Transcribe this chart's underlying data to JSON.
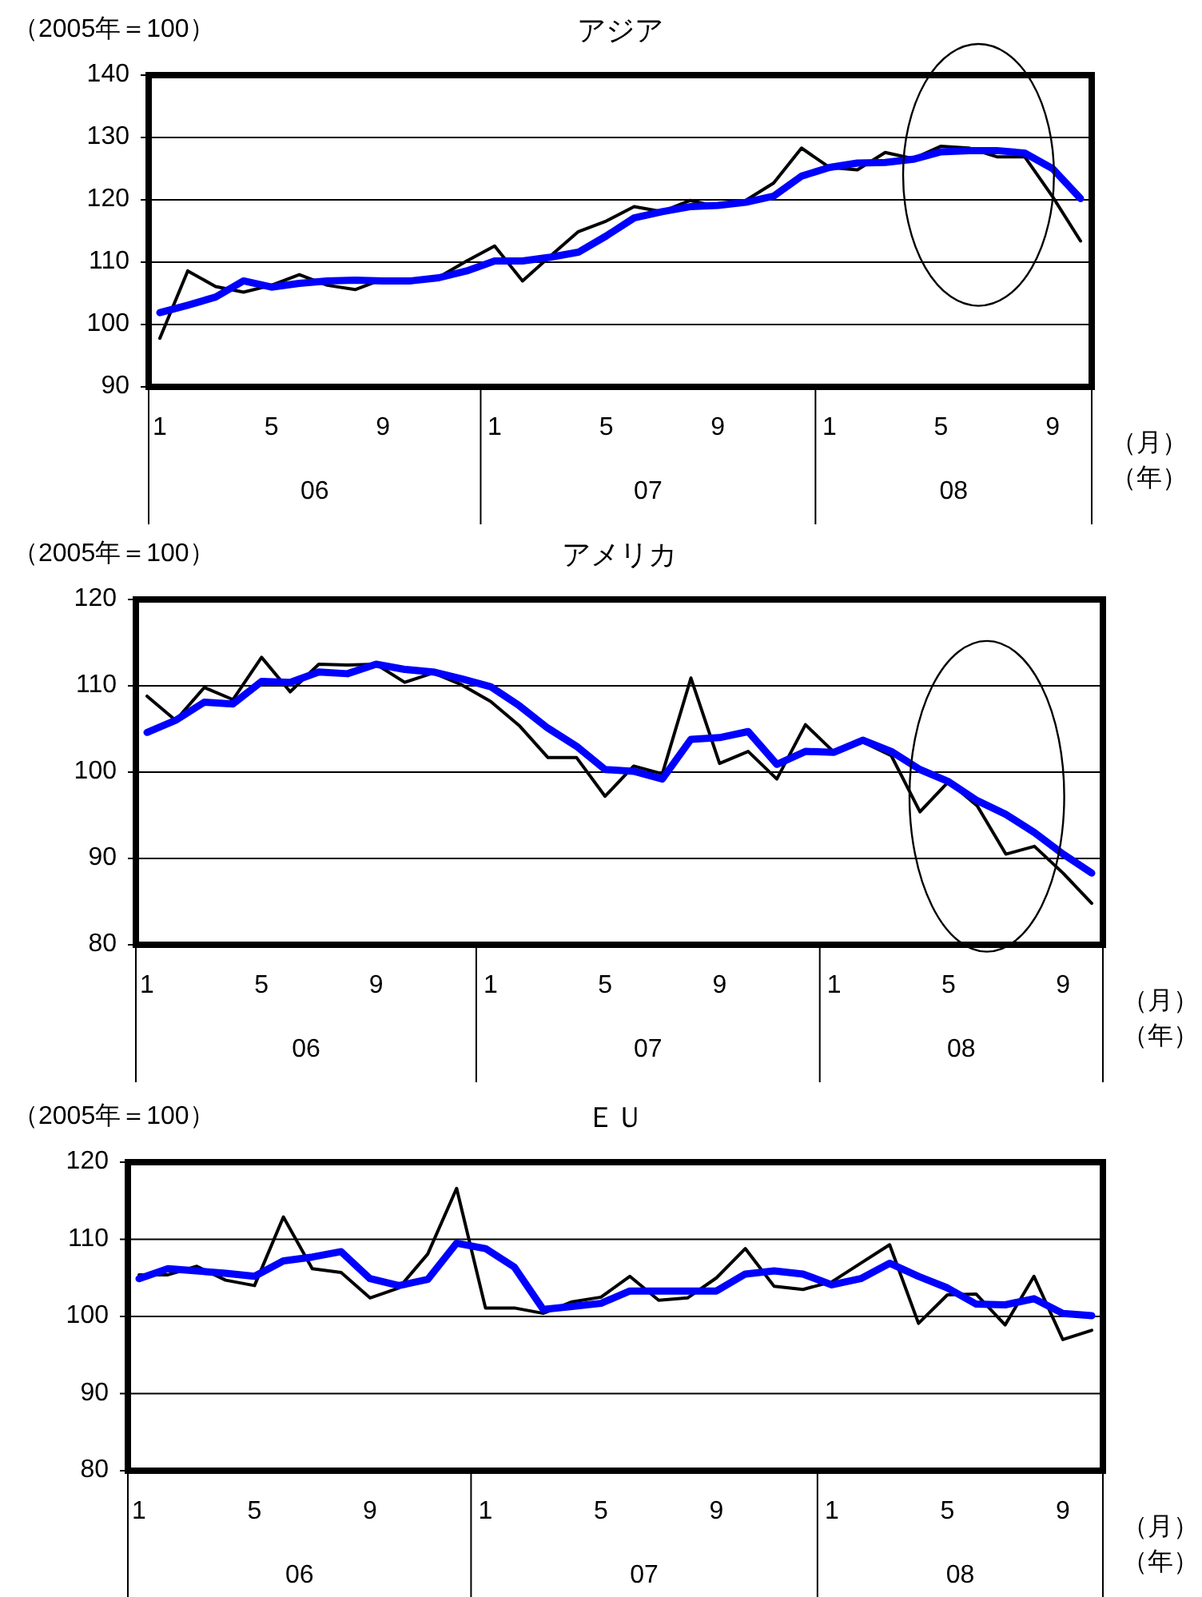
{
  "chart_data": [
    {
      "type": "line",
      "title": "アジア",
      "ylabel": "（2005年＝100）",
      "xlabel": "（月）",
      "annotations": [
        "（年）",
        "06",
        "07",
        "08"
      ],
      "categories": [
        "1",
        null,
        null,
        null,
        "5",
        null,
        null,
        null,
        "9",
        null,
        null,
        null,
        "1",
        null,
        null,
        null,
        "5",
        null,
        null,
        null,
        "9",
        null,
        null,
        null,
        "1",
        null,
        null,
        null,
        "5",
        null,
        null,
        null,
        "9",
        null
      ],
      "ylim": [
        90,
        140
      ],
      "yticks": [
        90,
        100,
        110,
        120,
        130,
        140
      ],
      "grid": "y",
      "series": [
        {
          "color": "#000000",
          "values": [
            97.8,
            108.6,
            106.1,
            105.2,
            106.3,
            108,
            106.3,
            105.6,
            107.3,
            106.8,
            107.6,
            110.2,
            112.6,
            107,
            111,
            114.9,
            116.6,
            118.9,
            118.1,
            119.9,
            118.9,
            119.9,
            122.7,
            128.3,
            125.2,
            124.8,
            127.6,
            126.6,
            128.6,
            128.3,
            126.9,
            126.9,
            120.5,
            113.4
          ]
        },
        {
          "color": "#0000ff",
          "values": [
            101.9,
            103.1,
            104.4,
            107,
            106,
            106.6,
            107,
            107.1,
            107,
            107,
            107.5,
            108.6,
            110.2,
            110.2,
            110.8,
            111.6,
            114.2,
            117.1,
            118.1,
            118.9,
            119.1,
            119.6,
            120.6,
            123.8,
            125.2,
            125.9,
            126,
            126.5,
            127.7,
            127.9,
            127.9,
            127.5,
            125,
            120.2
          ]
        }
      ]
    },
    {
      "type": "line",
      "title": "アメリカ",
      "ylabel": "（2005年＝100）",
      "xlabel": "（月）",
      "annotations": [
        "（年）",
        "06",
        "07",
        "08"
      ],
      "categories": [
        "1",
        null,
        null,
        null,
        "5",
        null,
        null,
        null,
        "9",
        null,
        null,
        null,
        "1",
        null,
        null,
        null,
        "5",
        null,
        null,
        null,
        "9",
        null,
        null,
        null,
        "1",
        null,
        null,
        null,
        "5",
        null,
        null,
        null,
        "9",
        null
      ],
      "ylim": [
        80,
        120
      ],
      "yticks": [
        80,
        90,
        100,
        110,
        120
      ],
      "grid": "y",
      "series": [
        {
          "color": "#000000",
          "values": [
            108.8,
            106,
            109.8,
            108.4,
            113.3,
            109.3,
            112.5,
            112.4,
            112.5,
            110.4,
            111.5,
            110.1,
            108.2,
            105.4,
            101.7,
            101.7,
            97.2,
            100.7,
            99.8,
            110.9,
            101,
            102.4,
            99.2,
            105.5,
            102.3,
            103.5,
            101.9,
            95.4,
            98.9,
            96.1,
            90.5,
            91.4,
            88.3,
            84.8
          ]
        },
        {
          "color": "#0000ff",
          "values": [
            104.6,
            106,
            108.1,
            107.9,
            110.5,
            110.4,
            111.6,
            111.4,
            112.5,
            111.9,
            111.6,
            110.8,
            109.9,
            107.7,
            105.1,
            103,
            100.3,
            100.1,
            99.2,
            103.8,
            104,
            104.7,
            100.9,
            102.4,
            102.3,
            103.7,
            102.4,
            100.3,
            98.9,
            96.7,
            95.1,
            93,
            90.5,
            88.3
          ]
        }
      ]
    },
    {
      "type": "line",
      "title": "ＥＵ",
      "ylabel": "（2005年＝100）",
      "xlabel": "（月）",
      "annotations": [
        "（年）",
        "06",
        "07",
        "08"
      ],
      "categories": [
        "1",
        null,
        null,
        null,
        "5",
        null,
        null,
        null,
        "9",
        null,
        null,
        null,
        "1",
        null,
        null,
        null,
        "5",
        null,
        null,
        null,
        "9",
        null,
        null,
        null,
        "1",
        null,
        null,
        null,
        "5",
        null,
        null,
        null,
        "9",
        null
      ],
      "ylim": [
        80,
        120
      ],
      "yticks": [
        80,
        90,
        100,
        110,
        120
      ],
      "grid": "y",
      "series": [
        {
          "color": "#000000",
          "values": [
            105.4,
            105.4,
            106.5,
            104.7,
            104,
            112.9,
            106.2,
            105.7,
            102.4,
            103.7,
            108.1,
            116.6,
            101.1,
            101.1,
            100.4,
            101.9,
            102.5,
            105.2,
            102.1,
            102.4,
            105,
            108.8,
            103.9,
            103.5,
            104.5,
            106.9,
            109.3,
            99.1,
            102.8,
            102.9,
            98.9,
            105.2,
            97,
            98.2
          ]
        },
        {
          "color": "#0000ff",
          "values": [
            104.9,
            106.2,
            105.9,
            105.6,
            105.2,
            107.2,
            107.7,
            108.4,
            104.9,
            104,
            104.8,
            109.5,
            108.8,
            106.4,
            100.9,
            101.3,
            101.7,
            103.3,
            103.3,
            103.3,
            103.3,
            105.5,
            105.9,
            105.5,
            104.1,
            104.9,
            106.9,
            105.2,
            103.7,
            101.6,
            101.5,
            102.3,
            100.4,
            100.1
          ]
        }
      ]
    }
  ]
}
